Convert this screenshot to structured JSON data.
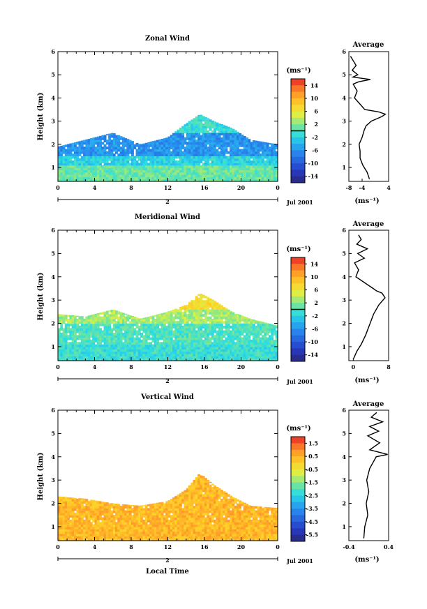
{
  "figure": {
    "date_label": "Jul 2001",
    "xlabel_bottom": "Local Time",
    "unit_label": "(ms⁻¹)"
  },
  "chart_data": [
    {
      "type": "heatmap",
      "title": "Zonal Wind",
      "ylabel": "Height (km)",
      "xlabel": "",
      "xlim": [
        0,
        24
      ],
      "xticks": [
        "0",
        "4",
        "8",
        "12",
        "16",
        "20",
        "0"
      ],
      "day_label": "2",
      "ylim": [
        0.4,
        6
      ],
      "yticks": [
        "1",
        "2",
        "3",
        "4",
        "5",
        "6"
      ],
      "colorbar": {
        "unit": "(ms⁻¹)",
        "ticks": [
          "14",
          "10",
          "6",
          "2",
          "-2",
          "-6",
          "-10",
          "-14"
        ],
        "range": [
          -16,
          16
        ],
        "zero_line": 0
      },
      "field_summary": {
        "top_km": [
          [
            0,
            1.9
          ],
          [
            3,
            2.2
          ],
          [
            6,
            2.5
          ],
          [
            9,
            2.0
          ],
          [
            12,
            2.3
          ],
          [
            14,
            2.9
          ],
          [
            15.5,
            3.3
          ],
          [
            17,
            3.0
          ],
          [
            19,
            2.7
          ],
          [
            21,
            2.2
          ],
          [
            24,
            2.0
          ]
        ],
        "bands": [
          {
            "from_km": 0.4,
            "to_km": 1.0,
            "value": 1
          },
          {
            "from_km": 1.0,
            "to_km": 1.5,
            "value": -2
          },
          {
            "from_km": 1.5,
            "to_km": 2.5,
            "value": -6
          },
          {
            "from_km": 2.5,
            "to_km": 3.3,
            "value": -1
          }
        ]
      },
      "average_profile": {
        "title": "Average",
        "xlabel": "(ms⁻¹)",
        "xlim": [
          -8,
          4
        ],
        "xticks": [
          "-8",
          "-4",
          "4"
        ],
        "ylim": [
          0.4,
          6
        ],
        "points": [
          [
            -1.8,
            0.5
          ],
          [
            -2.5,
            0.8
          ],
          [
            -3.8,
            1.1
          ],
          [
            -4.6,
            1.4
          ],
          [
            -4.6,
            1.7
          ],
          [
            -4.9,
            2.0
          ],
          [
            -4.0,
            2.3
          ],
          [
            -3.4,
            2.6
          ],
          [
            -2.8,
            2.8
          ],
          [
            -1.2,
            3.0
          ],
          [
            2.0,
            3.2
          ],
          [
            3.0,
            3.3
          ],
          [
            1.0,
            3.4
          ],
          [
            -3.2,
            3.5
          ],
          [
            -6.3,
            4.0
          ],
          [
            -5.5,
            4.3
          ],
          [
            -6.7,
            4.6
          ],
          [
            -5.0,
            4.7
          ],
          [
            -1.5,
            4.8
          ],
          [
            -6.8,
            4.9
          ],
          [
            -5.3,
            5.0
          ],
          [
            -7.0,
            5.2
          ],
          [
            -5.8,
            5.4
          ],
          [
            -7.5,
            5.8
          ]
        ]
      }
    },
    {
      "type": "heatmap",
      "title": "Meridional Wind",
      "ylabel": "Height (km)",
      "xlabel": "",
      "xlim": [
        0,
        24
      ],
      "xticks": [
        "0",
        "4",
        "8",
        "12",
        "16",
        "20",
        "0"
      ],
      "day_label": "2",
      "ylim": [
        0.4,
        6
      ],
      "yticks": [
        "1",
        "2",
        "3",
        "4",
        "5",
        "6"
      ],
      "colorbar": {
        "unit": "(ms⁻¹)",
        "ticks": [
          "14",
          "10",
          "6",
          "2",
          "-2",
          "-6",
          "-10",
          "-14"
        ],
        "range": [
          -16,
          16
        ],
        "zero_line": 0
      },
      "field_summary": {
        "top_km": [
          [
            0,
            2.4
          ],
          [
            3,
            2.3
          ],
          [
            6,
            2.6
          ],
          [
            9,
            2.2
          ],
          [
            12,
            2.5
          ],
          [
            14,
            2.8
          ],
          [
            15.5,
            3.3
          ],
          [
            17,
            3.0
          ],
          [
            19,
            2.5
          ],
          [
            21,
            2.2
          ],
          [
            24,
            1.9
          ]
        ],
        "bands": [
          {
            "from_km": 0.4,
            "to_km": 1.0,
            "value": -1
          },
          {
            "from_km": 1.0,
            "to_km": 2.0,
            "value": 0
          },
          {
            "from_km": 2.0,
            "to_km": 2.6,
            "value": 3
          },
          {
            "from_km": 2.6,
            "to_km": 3.3,
            "value": 7
          }
        ]
      },
      "average_profile": {
        "title": "Average",
        "xlabel": "(ms⁻¹)",
        "xlim": [
          -1,
          8
        ],
        "xticks": [
          "0",
          "8"
        ],
        "ylim": [
          0.4,
          6
        ],
        "points": [
          [
            0.1,
            0.5
          ],
          [
            0.8,
            0.8
          ],
          [
            1.8,
            1.1
          ],
          [
            2.8,
            1.5
          ],
          [
            3.8,
            2.0
          ],
          [
            4.6,
            2.4
          ],
          [
            5.8,
            2.8
          ],
          [
            7.2,
            3.1
          ],
          [
            6.5,
            3.3
          ],
          [
            5.2,
            3.4
          ],
          [
            4.5,
            3.5
          ],
          [
            0.6,
            4.0
          ],
          [
            1.2,
            4.3
          ],
          [
            0.3,
            4.6
          ],
          [
            2.5,
            4.8
          ],
          [
            1.0,
            5.0
          ],
          [
            3.2,
            5.2
          ],
          [
            0.8,
            5.4
          ],
          [
            1.8,
            5.6
          ],
          [
            1.2,
            5.8
          ]
        ]
      }
    },
    {
      "type": "heatmap",
      "title": "Vertical Wind",
      "ylabel": "Height (km)",
      "xlabel": "Local Time",
      "xlim": [
        0,
        24
      ],
      "xticks": [
        "0",
        "4",
        "8",
        "12",
        "16",
        "20",
        "0"
      ],
      "day_label": "2",
      "ylim": [
        0.4,
        6
      ],
      "yticks": [
        "1",
        "2",
        "3",
        "4",
        "5",
        "6"
      ],
      "colorbar": {
        "unit": "(ms⁻¹)",
        "ticks": [
          "1.5",
          "0.5",
          "-0.5",
          "-1.5",
          "-2.5",
          "-3.5",
          "-4.5",
          "-5.5"
        ],
        "range": [
          -6,
          2
        ],
        "zero_line": null
      },
      "field_summary": {
        "top_km": [
          [
            0,
            2.3
          ],
          [
            3,
            2.2
          ],
          [
            6,
            2.0
          ],
          [
            9,
            1.9
          ],
          [
            12,
            2.1
          ],
          [
            14,
            2.6
          ],
          [
            15.5,
            3.3
          ],
          [
            17,
            2.8
          ],
          [
            19,
            2.3
          ],
          [
            21,
            1.9
          ],
          [
            24,
            1.8
          ]
        ],
        "bands": [
          {
            "from_km": 0.4,
            "to_km": 3.3,
            "value": 0.4
          }
        ]
      },
      "average_profile": {
        "title": "Average",
        "xlabel": "(ms⁻¹)",
        "xlim": [
          -0.4,
          0.4
        ],
        "xticks": [
          "-0.4",
          "0.4"
        ],
        "ylim": [
          0.4,
          6
        ],
        "points": [
          [
            -0.1,
            0.5
          ],
          [
            -0.08,
            1.0
          ],
          [
            -0.02,
            1.5
          ],
          [
            -0.05,
            2.0
          ],
          [
            0.0,
            2.5
          ],
          [
            -0.04,
            3.0
          ],
          [
            0.02,
            3.5
          ],
          [
            0.15,
            4.0
          ],
          [
            0.38,
            4.1
          ],
          [
            0.02,
            4.3
          ],
          [
            0.22,
            4.6
          ],
          [
            -0.02,
            4.9
          ],
          [
            0.2,
            5.1
          ],
          [
            0.02,
            5.3
          ],
          [
            0.28,
            5.5
          ],
          [
            0.05,
            5.7
          ],
          [
            0.16,
            5.9
          ]
        ]
      }
    }
  ]
}
